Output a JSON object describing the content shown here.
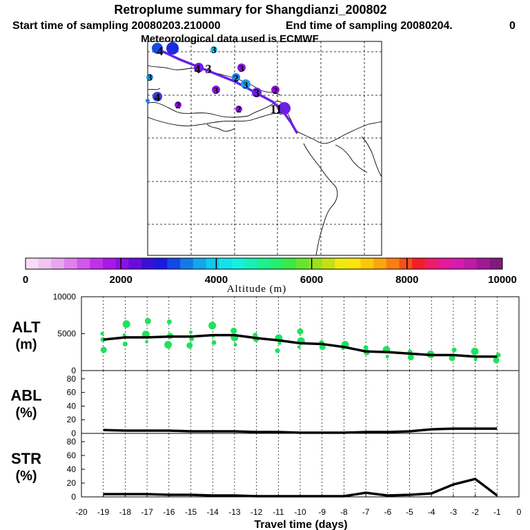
{
  "header": {
    "title": "Retroplume summary for Shangdianzi_200802",
    "start_label": "Start time of sampling 20080203.210000",
    "end_label": "End time of sampling 20080204.",
    "end_suffix": "0",
    "met_label": "Meteorological data used is ECMWF"
  },
  "colors": {
    "track": "#6a1fe8",
    "scatter": "#1de35a",
    "line": "#000000",
    "grid": "#000000"
  },
  "map": {
    "cluster_labels": [
      {
        "text": "4",
        "color": "#1a4be0"
      },
      {
        "text": "3",
        "color": "#21b7e6"
      },
      {
        "text": "4",
        "color": "#7a18e6"
      },
      {
        "text": "3",
        "color": "#6a1fe8"
      },
      {
        "text": "3",
        "color": "#8218e0"
      },
      {
        "text": "2",
        "color": "#1f7fe0"
      },
      {
        "text": "3",
        "color": "#6a1fe8"
      },
      {
        "text": "3",
        "color": "#6a1fe8"
      },
      {
        "text": "2",
        "color": "#9010d8"
      },
      {
        "text": "3",
        "color": "#8a16e0"
      },
      {
        "text": "2",
        "color": "#8a16e0"
      },
      {
        "text": "1",
        "color": "#6a1fe8"
      },
      {
        "text": "4",
        "color": "#3a3ae0"
      },
      {
        "text": "3",
        "color": "#1f9be6"
      },
      {
        "text": "2",
        "color": "#8a16e0"
      },
      {
        "text": "1",
        "color": "#8a16e0"
      }
    ]
  },
  "colorbar": {
    "tick_labels": [
      "0",
      "2000",
      "4000",
      "6000",
      "8000",
      "10000"
    ],
    "title": "Altitude (m)",
    "range": [
      0,
      10000
    ],
    "colors": [
      "#f7dcf7",
      "#f1c4f1",
      "#e9a6ef",
      "#df80ec",
      "#d058ea",
      "#c030e8",
      "#a818e6",
      "#8c10e2",
      "#6a0ce0",
      "#3a10d8",
      "#1a1ae0",
      "#1448e6",
      "#127ae8",
      "#12a6ea",
      "#12c8ec",
      "#12e2ee",
      "#14f0e0",
      "#18f0b8",
      "#1ef090",
      "#26ee6a",
      "#3aea44",
      "#66e62a",
      "#98e21e",
      "#c6e014",
      "#eeea10",
      "#fde40c",
      "#fdc80c",
      "#fca60e",
      "#fa7e12",
      "#f85018",
      "#f41e2a",
      "#ee1a6a",
      "#e41a9a",
      "#d81ab0",
      "#c01aa8",
      "#a01a98",
      "#801a80"
    ]
  },
  "chart_data": [
    {
      "type": "scatter",
      "name": "ALT",
      "ylabel": "ALT\n(m)",
      "ylabel_line1": "ALT",
      "ylabel_line2": "(m)",
      "ylim": [
        0,
        10000
      ],
      "yticks": [
        "10000",
        "5000",
        "0"
      ],
      "points": [
        {
          "x": -19,
          "y": 5000
        },
        {
          "x": -19,
          "y": 4200
        },
        {
          "x": -19,
          "y": 2800
        },
        {
          "x": -18,
          "y": 6300
        },
        {
          "x": -18,
          "y": 4800
        },
        {
          "x": -18,
          "y": 3600
        },
        {
          "x": -17,
          "y": 6700
        },
        {
          "x": -17,
          "y": 4900
        },
        {
          "x": -17,
          "y": 3900
        },
        {
          "x": -16,
          "y": 6600
        },
        {
          "x": -16,
          "y": 4700
        },
        {
          "x": -16,
          "y": 3500
        },
        {
          "x": -15,
          "y": 5200
        },
        {
          "x": -15,
          "y": 4300
        },
        {
          "x": -15,
          "y": 3400
        },
        {
          "x": -14,
          "y": 6100
        },
        {
          "x": -14,
          "y": 4700
        },
        {
          "x": -14,
          "y": 3800
        },
        {
          "x": -13,
          "y": 5400
        },
        {
          "x": -13,
          "y": 4500
        },
        {
          "x": -13,
          "y": 3500
        },
        {
          "x": -12,
          "y": 4800
        },
        {
          "x": -12,
          "y": 4300
        },
        {
          "x": -11,
          "y": 4400
        },
        {
          "x": -11,
          "y": 3700
        },
        {
          "x": -11,
          "y": 2700
        },
        {
          "x": -10,
          "y": 5300
        },
        {
          "x": -10,
          "y": 4000
        },
        {
          "x": -10,
          "y": 3200
        },
        {
          "x": -9,
          "y": 3800
        },
        {
          "x": -9,
          "y": 3200
        },
        {
          "x": -8,
          "y": 3500
        },
        {
          "x": -8,
          "y": 3000
        },
        {
          "x": -7,
          "y": 3100
        },
        {
          "x": -7,
          "y": 2500
        },
        {
          "x": -6,
          "y": 2800
        },
        {
          "x": -6,
          "y": 1900
        },
        {
          "x": -5,
          "y": 2500
        },
        {
          "x": -5,
          "y": 1800
        },
        {
          "x": -4,
          "y": 2200
        },
        {
          "x": -4,
          "y": 1900
        },
        {
          "x": -3,
          "y": 2800
        },
        {
          "x": -3,
          "y": 1700
        },
        {
          "x": -2,
          "y": 2600
        },
        {
          "x": -2,
          "y": 1500
        },
        {
          "x": -1,
          "y": 2100
        },
        {
          "x": -1,
          "y": 1400
        }
      ],
      "line": {
        "x": [
          -19,
          -18,
          -17,
          -16,
          -15,
          -14,
          -13,
          -12,
          -11,
          -10,
          -9,
          -8,
          -7,
          -6,
          -5,
          -4,
          -3,
          -2,
          -1
        ],
        "y": [
          4200,
          4500,
          4500,
          4600,
          4600,
          4800,
          4800,
          4400,
          4100,
          3700,
          3600,
          3200,
          2600,
          2500,
          2300,
          2100,
          2100,
          1900,
          1900
        ]
      }
    },
    {
      "type": "line",
      "name": "ABL",
      "ylabel_line1": "ABL",
      "ylabel_line2": "(%)",
      "ylim": [
        0,
        90
      ],
      "yticks": [
        "80",
        "60",
        "40",
        "20",
        "0"
      ],
      "x": [
        -19,
        -18,
        -17,
        -16,
        -15,
        -14,
        -13,
        -12,
        -11,
        -10,
        -9,
        -8,
        -7,
        -6,
        -5,
        -4,
        -3,
        -2,
        -1
      ],
      "y": [
        5,
        4,
        4,
        4,
        3,
        3,
        3,
        2,
        2,
        1,
        1,
        1,
        2,
        2,
        3,
        6,
        7,
        7,
        7
      ]
    },
    {
      "type": "line",
      "name": "STR",
      "ylabel_line1": "STR",
      "ylabel_line2": "(%)",
      "ylim": [
        0,
        90
      ],
      "yticks": [
        "80",
        "60",
        "40",
        "20",
        "0"
      ],
      "x": [
        -19,
        -18,
        -17,
        -16,
        -15,
        -14,
        -13,
        -12,
        -11,
        -10,
        -9,
        -8,
        -7,
        -6,
        -5,
        -4,
        -3,
        -2,
        -1
      ],
      "y": [
        4,
        4,
        4,
        3,
        3,
        2,
        2,
        1,
        1,
        1,
        1,
        1,
        6,
        2,
        3,
        5,
        18,
        26,
        2
      ]
    }
  ],
  "xaxis": {
    "label": "Travel time (days)",
    "range": [
      -20,
      0
    ],
    "tick_labels": [
      "-20",
      "-19",
      "-18",
      "-17",
      "-16",
      "-15",
      "-14",
      "-13",
      "-12",
      "-11",
      "-10",
      "-9",
      "-8",
      "-7",
      "-6",
      "-5",
      "-4",
      "-3",
      "-2",
      "-1",
      "0"
    ]
  }
}
